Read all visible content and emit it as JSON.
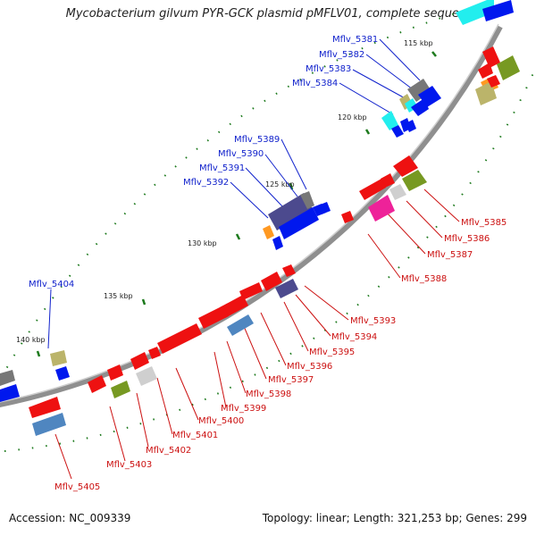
{
  "title": "Mycobacterium gilvum PYR-GCK plasmid pMFLV01, complete seque...",
  "footer": {
    "accession": "Accession: NC_009339",
    "summary": "Topology: linear; Length: 321,253 bp; Genes: 299"
  },
  "ticks": [
    "115 kbp",
    "120 kbp",
    "125 kbp",
    "130 kbp",
    "135 kbp",
    "140 kbp"
  ],
  "labels_blue": [
    "Mflv_5381",
    "Mflv_5382",
    "Mflv_5383",
    "Mflv_5384",
    "Mflv_5389",
    "Mflv_5390",
    "Mflv_5391",
    "Mflv_5392",
    "Mflv_5404"
  ],
  "labels_red": [
    "Mflv_5385",
    "Mflv_5386",
    "Mflv_5387",
    "Mflv_5388",
    "Mflv_5393",
    "Mflv_5394",
    "Mflv_5395",
    "Mflv_5396",
    "Mflv_5397",
    "Mflv_5398",
    "Mflv_5399",
    "Mflv_5400",
    "Mflv_5401",
    "Mflv_5402",
    "Mflv_5403",
    "Mflv_5405"
  ],
  "colors": {
    "red": "#ee1111",
    "blue": "#0018ee",
    "cyan": "#22eeee",
    "gray": "#777777",
    "lightgray": "#cfcfcf",
    "olive": "#779922",
    "khaki": "#bbb46a",
    "orange": "#ff9922",
    "magenta": "#ee2299",
    "purple": "#4c4a8e",
    "steelblue": "#4f86c0",
    "dots": "#1d7a1d",
    "backbone": "#8f8f8f",
    "label_blue": "#1122cc",
    "label_red": "#cc1111"
  }
}
